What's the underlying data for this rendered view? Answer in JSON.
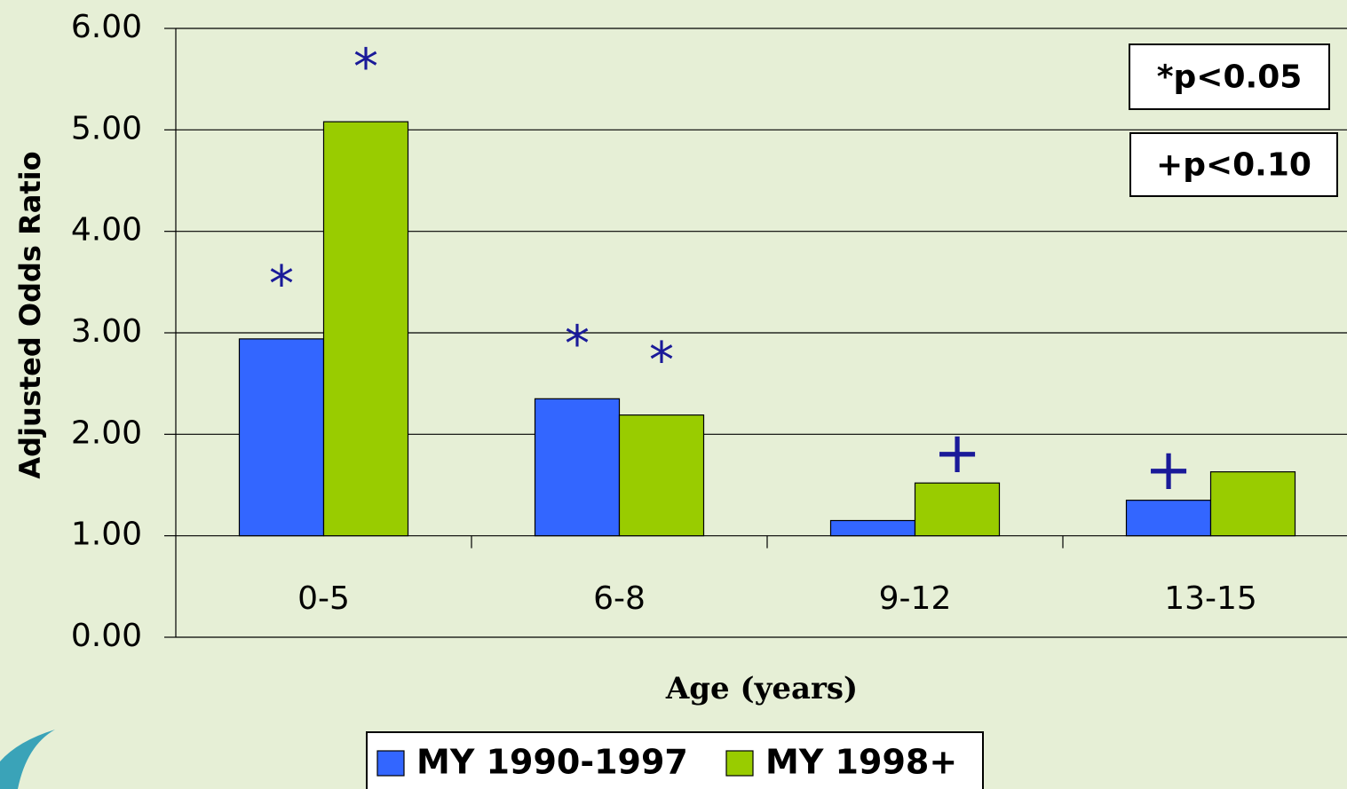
{
  "chart_data": {
    "type": "bar",
    "ylabel": "Adjusted Odds Ratio",
    "xlabel": "Age (years)",
    "categories": [
      "0-5",
      "6-8",
      "9-12",
      "13-15"
    ],
    "series": [
      {
        "name": "MY 1990-1997",
        "color": "#3366ff",
        "values": [
          2.94,
          2.35,
          1.15,
          1.35
        ],
        "markers": [
          "*",
          "*",
          null,
          "+"
        ]
      },
      {
        "name": "MY 1998+",
        "color": "#99cc00",
        "values": [
          5.08,
          2.19,
          1.52,
          1.63
        ],
        "markers": [
          "*",
          "*",
          "+",
          null
        ]
      }
    ],
    "bar_base": 1,
    "ylim": [
      0,
      6
    ],
    "yticks": [
      {
        "value": 0,
        "label": "0.00"
      },
      {
        "value": 1,
        "label": "1.00"
      },
      {
        "value": 2,
        "label": "2.00"
      },
      {
        "value": 3,
        "label": "3.00"
      },
      {
        "value": 4,
        "label": "4.00"
      },
      {
        "value": 5,
        "label": "5.00"
      },
      {
        "value": 6,
        "label": "6.00"
      }
    ],
    "grid": true,
    "notes": [
      "*p<0.05",
      "+p<0.10"
    ]
  }
}
